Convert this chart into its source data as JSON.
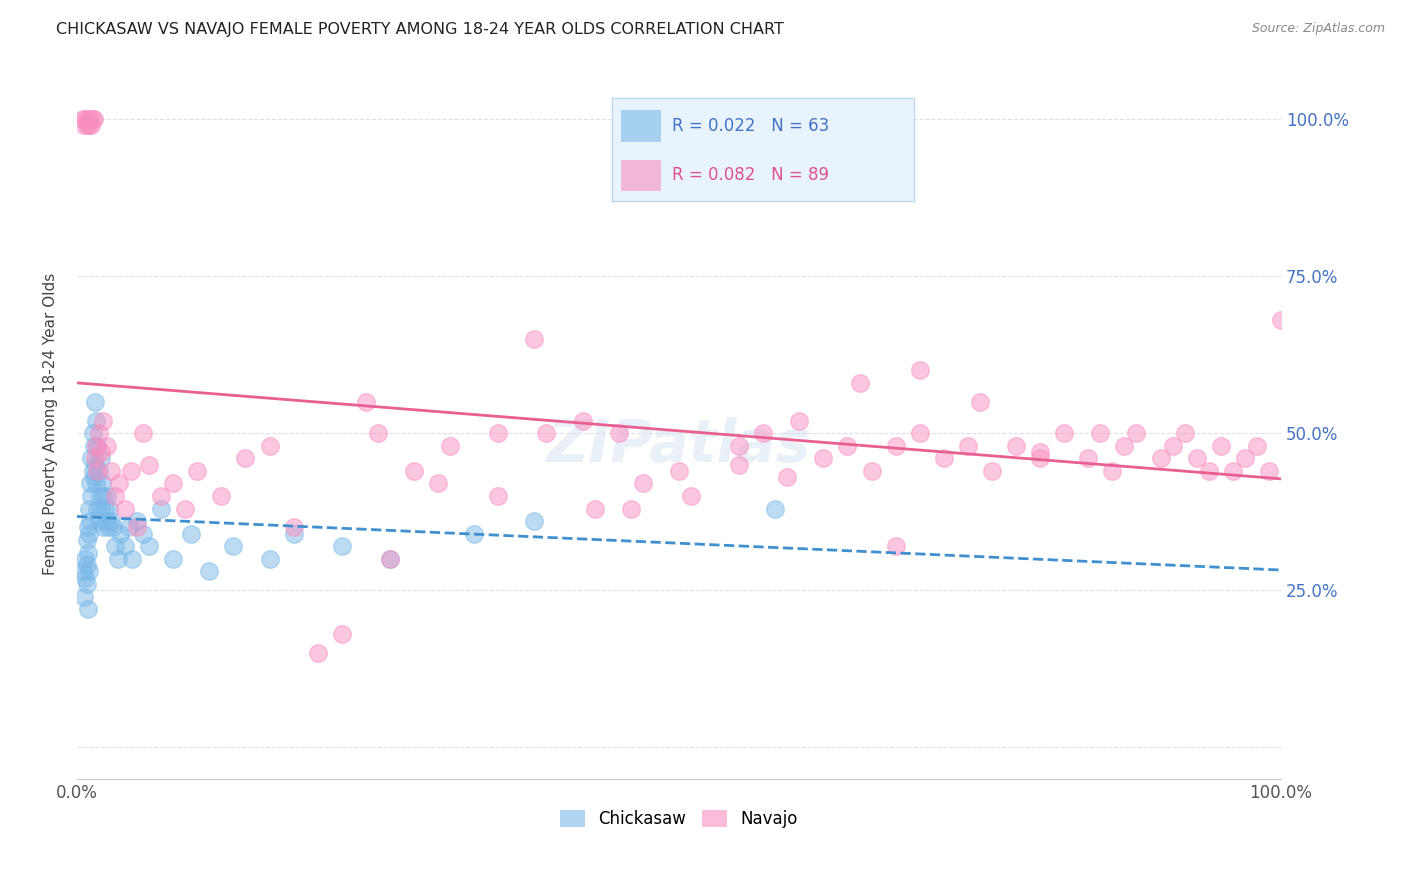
{
  "title": "CHICKASAW VS NAVAJO FEMALE POVERTY AMONG 18-24 YEAR OLDS CORRELATION CHART",
  "source": "Source: ZipAtlas.com",
  "ylabel": "Female Poverty Among 18-24 Year Olds",
  "chickasaw_color": "#7ab8e8",
  "navajo_color": "#f98fc0",
  "chickasaw_line_color": "#4090d0",
  "navajo_line_color": "#e86090",
  "chickasaw_R": 0.022,
  "chickasaw_N": 63,
  "navajo_R": 0.082,
  "navajo_N": 89,
  "watermark": "ZIPatlas",
  "right_tick_color": "#4472c4",
  "legend_bg": "#e8f4fd",
  "legend_border": "#c0d8ee",
  "chickasaw_x": [
    0.005,
    0.006,
    0.007,
    0.007,
    0.008,
    0.008,
    0.008,
    0.009,
    0.009,
    0.009,
    0.01,
    0.01,
    0.01,
    0.011,
    0.011,
    0.012,
    0.012,
    0.013,
    0.013,
    0.014,
    0.014,
    0.015,
    0.015,
    0.016,
    0.016,
    0.017,
    0.017,
    0.018,
    0.018,
    0.019,
    0.02,
    0.02,
    0.021,
    0.022,
    0.022,
    0.023,
    0.024,
    0.025,
    0.026,
    0.027,
    0.028,
    0.03,
    0.032,
    0.034,
    0.036,
    0.04,
    0.043,
    0.046,
    0.05,
    0.055,
    0.06,
    0.07,
    0.08,
    0.095,
    0.11,
    0.13,
    0.16,
    0.18,
    0.22,
    0.26,
    0.33,
    0.38,
    0.58
  ],
  "chickasaw_y": [
    0.28,
    0.24,
    0.3,
    0.27,
    0.33,
    0.29,
    0.26,
    0.35,
    0.31,
    0.22,
    0.38,
    0.34,
    0.28,
    0.42,
    0.36,
    0.46,
    0.4,
    0.5,
    0.44,
    0.48,
    0.43,
    0.55,
    0.45,
    0.52,
    0.42,
    0.48,
    0.38,
    0.44,
    0.36,
    0.4,
    0.46,
    0.38,
    0.42,
    0.4,
    0.35,
    0.38,
    0.36,
    0.4,
    0.35,
    0.38,
    0.36,
    0.35,
    0.32,
    0.3,
    0.34,
    0.32,
    0.35,
    0.3,
    0.36,
    0.34,
    0.32,
    0.38,
    0.3,
    0.34,
    0.28,
    0.32,
    0.3,
    0.34,
    0.32,
    0.3,
    0.34,
    0.36,
    0.38
  ],
  "navajo_x": [
    0.005,
    0.006,
    0.007,
    0.008,
    0.009,
    0.01,
    0.011,
    0.012,
    0.013,
    0.014,
    0.015,
    0.016,
    0.017,
    0.018,
    0.02,
    0.022,
    0.025,
    0.028,
    0.032,
    0.035,
    0.04,
    0.045,
    0.05,
    0.055,
    0.06,
    0.07,
    0.08,
    0.09,
    0.1,
    0.12,
    0.14,
    0.16,
    0.18,
    0.2,
    0.22,
    0.25,
    0.28,
    0.31,
    0.35,
    0.39,
    0.43,
    0.47,
    0.51,
    0.55,
    0.57,
    0.59,
    0.62,
    0.64,
    0.66,
    0.68,
    0.7,
    0.72,
    0.74,
    0.76,
    0.78,
    0.8,
    0.82,
    0.84,
    0.86,
    0.87,
    0.88,
    0.9,
    0.91,
    0.92,
    0.93,
    0.94,
    0.95,
    0.96,
    0.97,
    0.98,
    0.99,
    1.0,
    0.65,
    0.7,
    0.75,
    0.8,
    0.85,
    0.55,
    0.6,
    0.45,
    0.5,
    0.3,
    0.35,
    0.38,
    0.42,
    0.46,
    0.24,
    0.26,
    0.68
  ],
  "navajo_y": [
    1.0,
    0.99,
    1.0,
    0.99,
    1.0,
    0.99,
    1.0,
    0.99,
    1.0,
    1.0,
    0.46,
    0.48,
    0.44,
    0.5,
    0.47,
    0.52,
    0.48,
    0.44,
    0.4,
    0.42,
    0.38,
    0.44,
    0.35,
    0.5,
    0.45,
    0.4,
    0.42,
    0.38,
    0.44,
    0.4,
    0.46,
    0.48,
    0.35,
    0.15,
    0.18,
    0.5,
    0.44,
    0.48,
    0.4,
    0.5,
    0.38,
    0.42,
    0.4,
    0.45,
    0.5,
    0.43,
    0.46,
    0.48,
    0.44,
    0.48,
    0.5,
    0.46,
    0.48,
    0.44,
    0.48,
    0.46,
    0.5,
    0.46,
    0.44,
    0.48,
    0.5,
    0.46,
    0.48,
    0.5,
    0.46,
    0.44,
    0.48,
    0.44,
    0.46,
    0.48,
    0.44,
    0.68,
    0.58,
    0.6,
    0.55,
    0.47,
    0.5,
    0.48,
    0.52,
    0.5,
    0.44,
    0.42,
    0.5,
    0.65,
    0.52,
    0.38,
    0.55,
    0.3,
    0.32
  ],
  "xlim": [
    0.0,
    1.0
  ],
  "ylim": [
    0.0,
    1.0
  ],
  "xtick_positions": [
    0.0,
    0.25,
    0.5,
    0.75,
    1.0
  ],
  "xtick_labels": [
    "0.0%",
    "",
    "",
    "",
    "100.0%"
  ],
  "ytick_positions": [
    0.25,
    0.5,
    0.75,
    1.0
  ],
  "ytick_labels_right": [
    "25.0%",
    "50.0%",
    "75.0%",
    "100.0%"
  ],
  "grid_color": "#e0e0e0",
  "grid_linestyle": "--"
}
